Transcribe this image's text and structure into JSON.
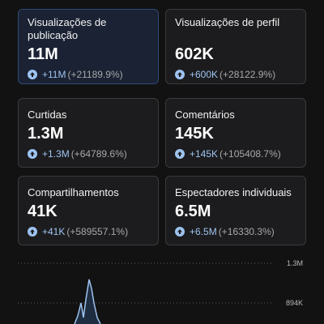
{
  "cards": [
    {
      "title": "Visualizações de publicação",
      "value": "11M",
      "delta_abs": "+11M",
      "delta_pct": "(+21189.9%)"
    },
    {
      "title": "Visualizações de perfil",
      "value": "602K",
      "delta_abs": "+600K",
      "delta_pct": "(+28122.9%)"
    },
    {
      "title": "Curtidas",
      "value": "1.3M",
      "delta_abs": "+1.3M",
      "delta_pct": "(+64789.6%)"
    },
    {
      "title": "Comentários",
      "value": "145K",
      "delta_abs": "+145K",
      "delta_pct": "(+105408.7%)"
    },
    {
      "title": "Compartilhamentos",
      "value": "41K",
      "delta_abs": "+41K",
      "delta_pct": "(+589557.1%)"
    },
    {
      "title": "Espectadores individuais",
      "value": "6.5M",
      "delta_abs": "+6.5M",
      "delta_pct": "(+16330.3%)"
    }
  ],
  "chart": {
    "gridlines": [
      "1.3M",
      "894K"
    ],
    "line_color": "#9ec3f0",
    "icons": [
      "arrow-up-icon"
    ]
  }
}
